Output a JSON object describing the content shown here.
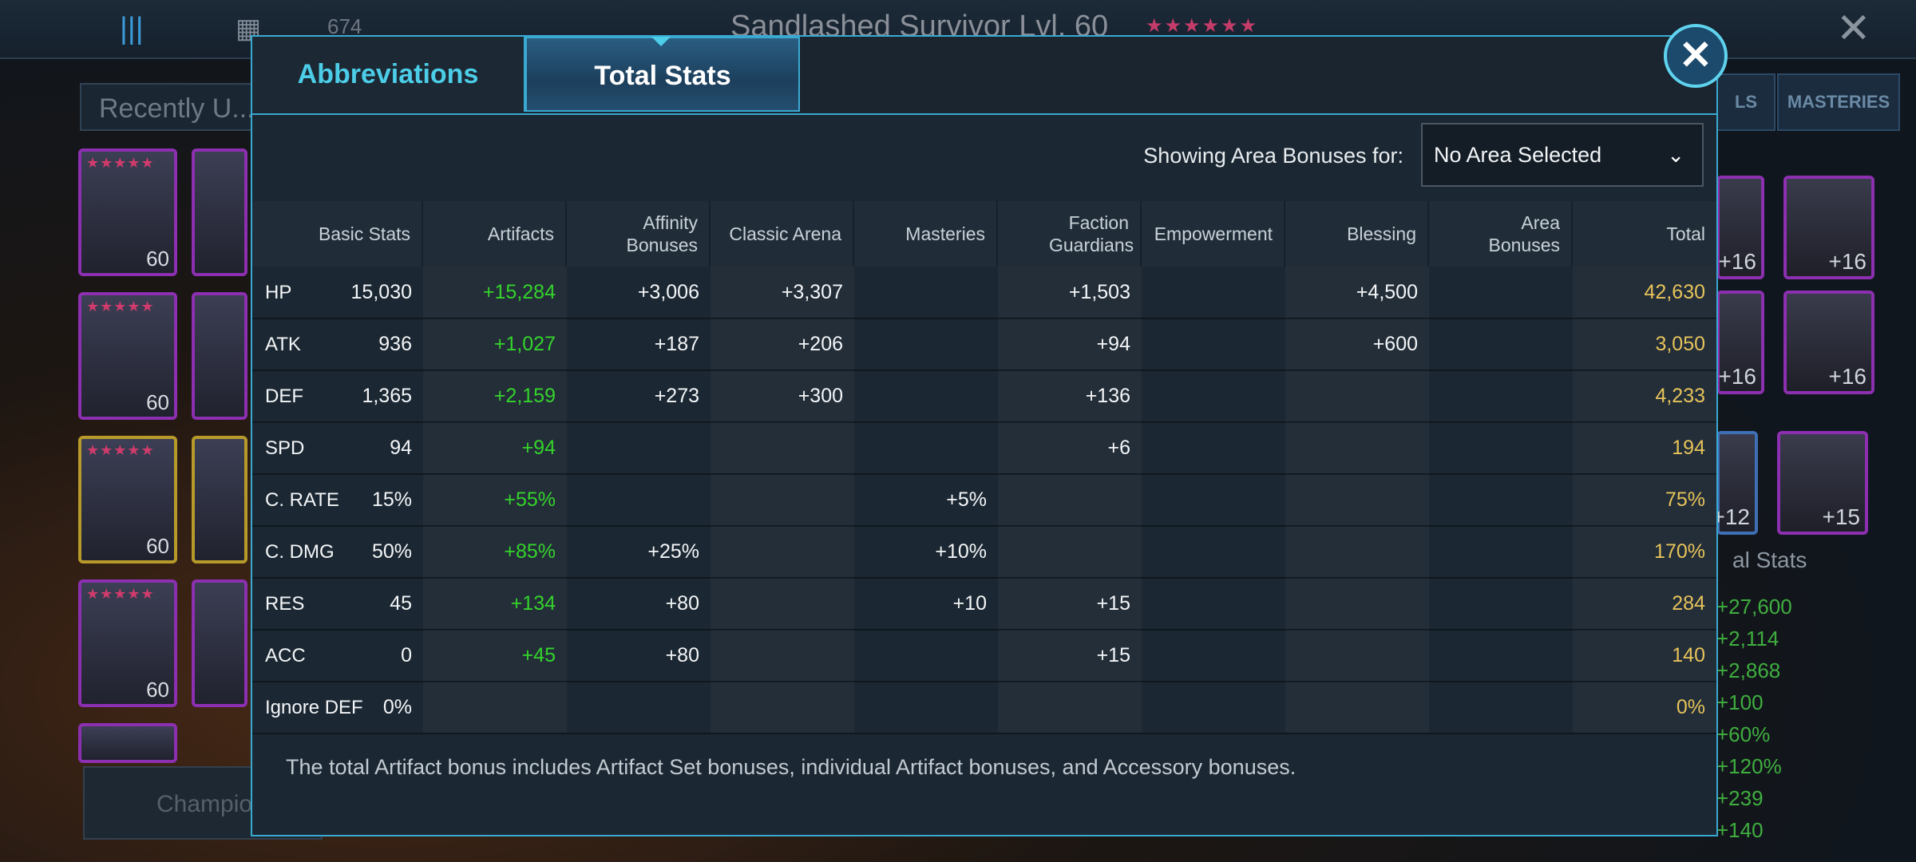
{
  "background": {
    "count": "674",
    "title": "Sandlashed Survivor Lvl. 60",
    "stars": "★★★★★★",
    "recent_label": "Recently U...",
    "champions_button": "Champio",
    "card_levels": [
      "60",
      "60",
      "60",
      "60"
    ],
    "right_tabs": [
      "LS",
      "MASTERIES"
    ],
    "right_card_levels": [
      "+16",
      "+16",
      "+16",
      "+16",
      "+12",
      "+15"
    ],
    "right_stats_title": "al Stats",
    "right_stats_values": [
      "+27,600",
      "+2,114",
      "+2,868",
      "+100",
      "+60%",
      "+120%",
      "+239",
      "+140"
    ]
  },
  "modal": {
    "tabs": [
      {
        "label": "Abbreviations",
        "active": false
      },
      {
        "label": "Total Stats",
        "active": true
      }
    ],
    "area_label": "Showing Area Bonuses for:",
    "area_selected": "No Area Selected",
    "columns": [
      "Basic Stats",
      "Artifacts",
      "Affinity Bonuses",
      "Classic Arena",
      "Masteries",
      "Faction Guardians",
      "Empowerment",
      "Blessing",
      "Area Bonuses",
      "Total"
    ],
    "rows": [
      {
        "stat": "HP",
        "basic": "15,030",
        "artifacts": "+15,284",
        "affinity": "+3,006",
        "arena": "+3,307",
        "masteries": "",
        "faction": "+1,503",
        "empowerment": "",
        "blessing": "+4,500",
        "area": "",
        "total": "42,630"
      },
      {
        "stat": "ATK",
        "basic": "936",
        "artifacts": "+1,027",
        "affinity": "+187",
        "arena": "+206",
        "masteries": "",
        "faction": "+94",
        "empowerment": "",
        "blessing": "+600",
        "area": "",
        "total": "3,050"
      },
      {
        "stat": "DEF",
        "basic": "1,365",
        "artifacts": "+2,159",
        "affinity": "+273",
        "arena": "+300",
        "masteries": "",
        "faction": "+136",
        "empowerment": "",
        "blessing": "",
        "area": "",
        "total": "4,233"
      },
      {
        "stat": "SPD",
        "basic": "94",
        "artifacts": "+94",
        "affinity": "",
        "arena": "",
        "masteries": "",
        "faction": "+6",
        "empowerment": "",
        "blessing": "",
        "area": "",
        "total": "194"
      },
      {
        "stat": "C. RATE",
        "basic": "15%",
        "artifacts": "+55%",
        "affinity": "",
        "arena": "",
        "masteries": "+5%",
        "faction": "",
        "empowerment": "",
        "blessing": "",
        "area": "",
        "total": "75%"
      },
      {
        "stat": "C. DMG",
        "basic": "50%",
        "artifacts": "+85%",
        "affinity": "+25%",
        "arena": "",
        "masteries": "+10%",
        "faction": "",
        "empowerment": "",
        "blessing": "",
        "area": "",
        "total": "170%"
      },
      {
        "stat": "RES",
        "basic": "45",
        "artifacts": "+134",
        "affinity": "+80",
        "arena": "",
        "masteries": "+10",
        "faction": "+15",
        "empowerment": "",
        "blessing": "",
        "area": "",
        "total": "284"
      },
      {
        "stat": "ACC",
        "basic": "0",
        "artifacts": "+45",
        "affinity": "+80",
        "arena": "",
        "masteries": "",
        "faction": "+15",
        "empowerment": "",
        "blessing": "",
        "area": "",
        "total": "140"
      },
      {
        "stat": "Ignore DEF",
        "basic": "0%",
        "artifacts": "",
        "affinity": "",
        "arena": "",
        "masteries": "",
        "faction": "",
        "empowerment": "",
        "blessing": "",
        "area": "",
        "total": "0%"
      }
    ],
    "footer_note": "The total Artifact bonus includes Artifact Set bonuses, individual Artifact bonuses, and Accessory bonuses.",
    "colors": {
      "accent": "#3aa9d2",
      "artifact_green": "#35d32b",
      "total_gold": "#e7c35a"
    }
  }
}
